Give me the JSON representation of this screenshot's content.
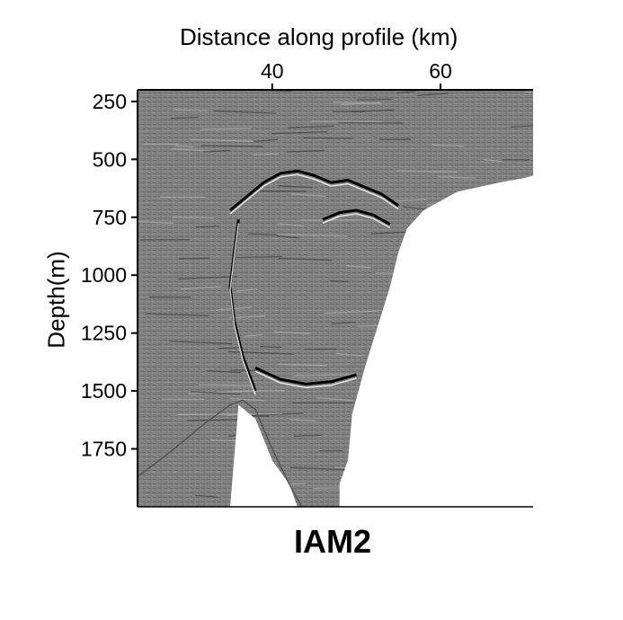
{
  "chart_data": {
    "type": "heatmap",
    "title": "",
    "panel_label": "IAM2",
    "xlabel": "Distance along profile (km)",
    "ylabel": "Depth(m)",
    "x_axis_position": "top",
    "x_ticks": [
      40,
      60
    ],
    "y_ticks": [
      250,
      500,
      750,
      1000,
      1250,
      1500,
      1750
    ],
    "xlim": [
      24,
      71
    ],
    "ylim": [
      2000,
      200
    ],
    "y_inverted": true,
    "grid": false,
    "colors": {
      "background": "#7f7f7f",
      "light": "#ffffff",
      "dark": "#000000",
      "blank": "#ffffff"
    },
    "blank_regions": [
      {
        "name": "right-white-region",
        "boundary_x_km": [
          71,
          70,
          67,
          62,
          58,
          56,
          55,
          54,
          51,
          49.5,
          49,
          48,
          48,
          71
        ],
        "boundary_depth_m": [
          570,
          580,
          600,
          640,
          720,
          800,
          900,
          1050,
          1400,
          1600,
          1800,
          1900,
          2000,
          2000
        ]
      },
      {
        "name": "lower-left-white-region",
        "boundary_x_km": [
          24,
          24,
          27,
          30,
          35,
          36,
          38,
          40,
          42,
          43,
          24
        ],
        "boundary_depth_m": [
          1880,
          2000,
          2000,
          2000,
          2000,
          1560,
          1620,
          1800,
          1900,
          2000,
          2000
        ],
        "upper_edge_x_km": [
          24,
          28,
          32,
          35,
          36.5,
          38,
          40,
          42,
          43.5
        ],
        "upper_edge_depth_m": [
          1870,
          1760,
          1640,
          1560,
          1540,
          1580,
          1750,
          1900,
          2000
        ]
      }
    ],
    "reflectors": [
      {
        "name": "dome-top",
        "x_km": [
          35,
          37,
          39,
          41,
          43,
          45,
          47,
          49,
          51,
          53,
          55
        ],
        "depth_m": [
          720,
          660,
          600,
          560,
          550,
          570,
          600,
          590,
          620,
          650,
          700
        ]
      },
      {
        "name": "inner-dome",
        "x_km": [
          46,
          48,
          50,
          52,
          54
        ],
        "depth_m": [
          760,
          730,
          720,
          740,
          780
        ]
      },
      {
        "name": "left-flank",
        "x_km": [
          36,
          35.5,
          35,
          35.5,
          36.5,
          38
        ],
        "depth_m": [
          760,
          900,
          1050,
          1200,
          1350,
          1500
        ]
      },
      {
        "name": "lower-arc",
        "x_km": [
          38,
          41,
          44,
          47,
          50
        ],
        "depth_m": [
          1400,
          1450,
          1470,
          1460,
          1430
        ]
      }
    ]
  }
}
